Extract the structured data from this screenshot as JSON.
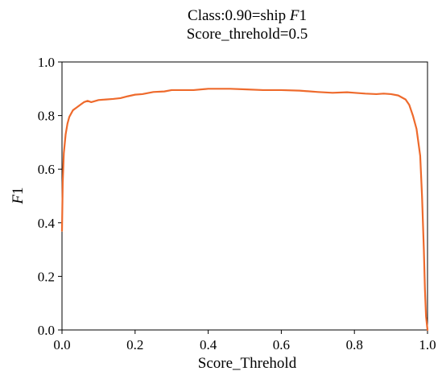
{
  "chart_data": {
    "type": "line",
    "title": "Class:0.90=ship F1",
    "title_parts": {
      "prefix": "Class:0.90=ship ",
      "italic": "F",
      "suffix": "1"
    },
    "subtitle": "Score_threhold=0.5",
    "xlabel": "Score_Threhold",
    "ylabel_parts": {
      "italic": "F",
      "suffix": "1"
    },
    "xlim": [
      0.0,
      1.0
    ],
    "ylim": [
      0.0,
      1.0
    ],
    "xticks": [
      0.0,
      0.2,
      0.4,
      0.6,
      0.8,
      1.0
    ],
    "yticks": [
      0.0,
      0.2,
      0.4,
      0.6,
      0.8,
      1.0
    ],
    "xtick_labels": [
      "0.0",
      "0.2",
      "0.4",
      "0.6",
      "0.8",
      "1.0"
    ],
    "ytick_labels": [
      "0.0",
      "0.2",
      "0.4",
      "0.6",
      "0.8",
      "1.0"
    ],
    "grid": false,
    "series": [
      {
        "color": "#ee6a2c",
        "x": [
          0.0,
          0.002,
          0.005,
          0.01,
          0.015,
          0.02,
          0.03,
          0.04,
          0.05,
          0.06,
          0.07,
          0.08,
          0.1,
          0.12,
          0.14,
          0.16,
          0.18,
          0.2,
          0.22,
          0.25,
          0.28,
          0.3,
          0.33,
          0.36,
          0.4,
          0.43,
          0.46,
          0.5,
          0.55,
          0.6,
          0.65,
          0.7,
          0.74,
          0.78,
          0.8,
          0.83,
          0.86,
          0.88,
          0.9,
          0.92,
          0.94,
          0.95,
          0.96,
          0.97,
          0.98,
          0.985,
          0.99,
          0.993,
          0.996,
          1.0
        ],
        "y": [
          0.37,
          0.55,
          0.66,
          0.73,
          0.77,
          0.795,
          0.82,
          0.83,
          0.84,
          0.85,
          0.855,
          0.85,
          0.858,
          0.86,
          0.862,
          0.865,
          0.872,
          0.878,
          0.88,
          0.888,
          0.89,
          0.895,
          0.895,
          0.895,
          0.9,
          0.9,
          0.9,
          0.898,
          0.895,
          0.895,
          0.893,
          0.888,
          0.885,
          0.887,
          0.885,
          0.882,
          0.88,
          0.882,
          0.88,
          0.875,
          0.86,
          0.84,
          0.8,
          0.75,
          0.65,
          0.5,
          0.3,
          0.15,
          0.05,
          0.0
        ]
      }
    ]
  }
}
